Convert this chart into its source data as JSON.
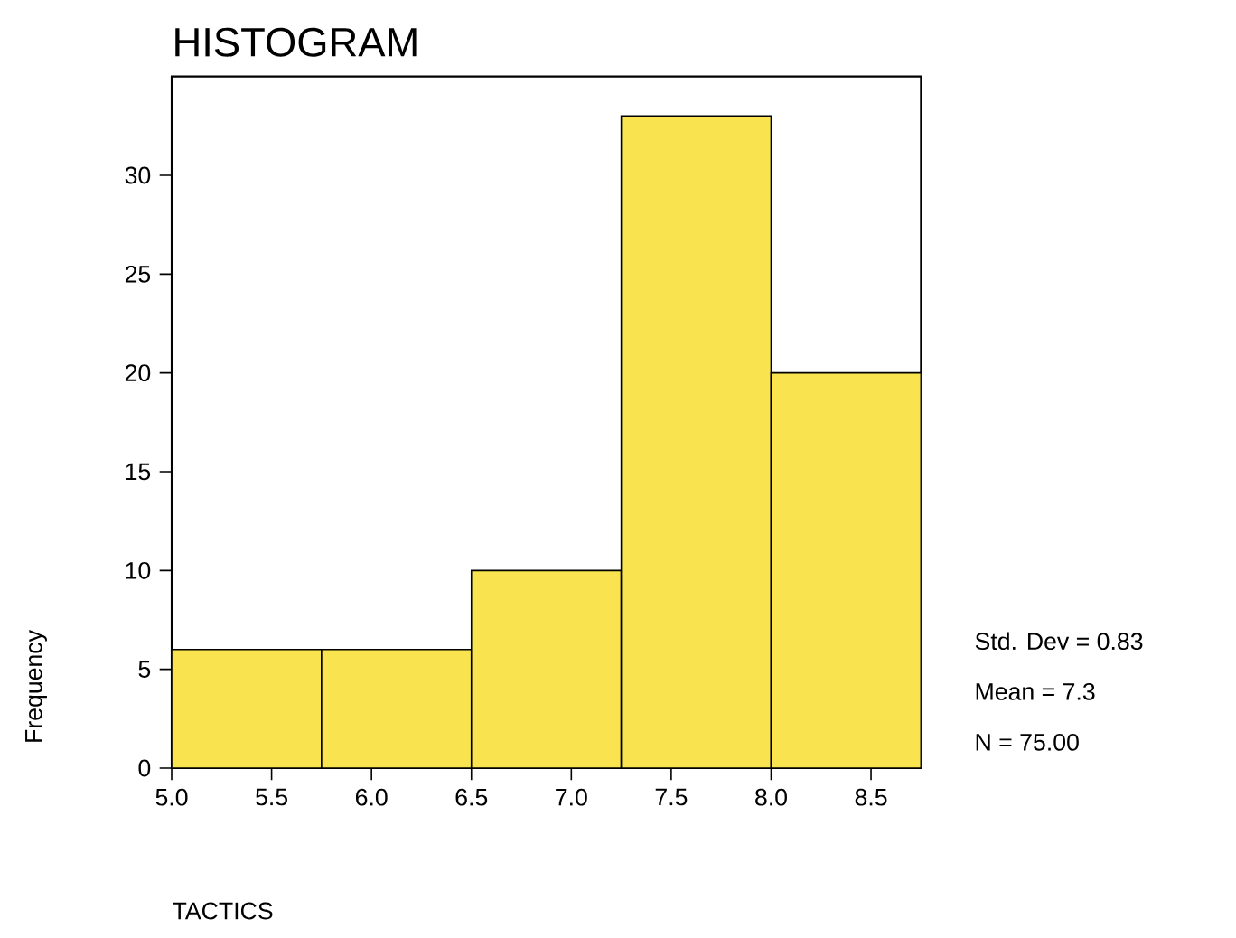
{
  "chart_data": {
    "type": "histogram",
    "title": "HISTOGRAM",
    "xlabel": "TACTICS",
    "ylabel": "Frequency",
    "bins": [
      5.0,
      5.75,
      6.5,
      7.25,
      8.0,
      8.75
    ],
    "values": [
      6,
      6,
      10,
      33,
      20
    ],
    "color": "#f9e44f",
    "xlim": [
      5.0,
      8.75
    ],
    "ylim": [
      0,
      35
    ],
    "xticks": [
      {
        "value": 5.0,
        "label": "5.0"
      },
      {
        "value": 5.5,
        "label": "5.5"
      },
      {
        "value": 6.0,
        "label": "6.0"
      },
      {
        "value": 6.5,
        "label": "6.5"
      },
      {
        "value": 7.0,
        "label": "7.0"
      },
      {
        "value": 7.5,
        "label": "7.5"
      },
      {
        "value": 8.0,
        "label": "8.0"
      },
      {
        "value": 8.5,
        "label": "8.5"
      }
    ],
    "yticks": [
      0,
      5,
      10,
      15,
      20,
      25,
      30
    ],
    "annotations": [
      "Std. Dev = 0.83",
      "Mean = 7.3",
      "N = 75.00"
    ],
    "grid": false
  }
}
